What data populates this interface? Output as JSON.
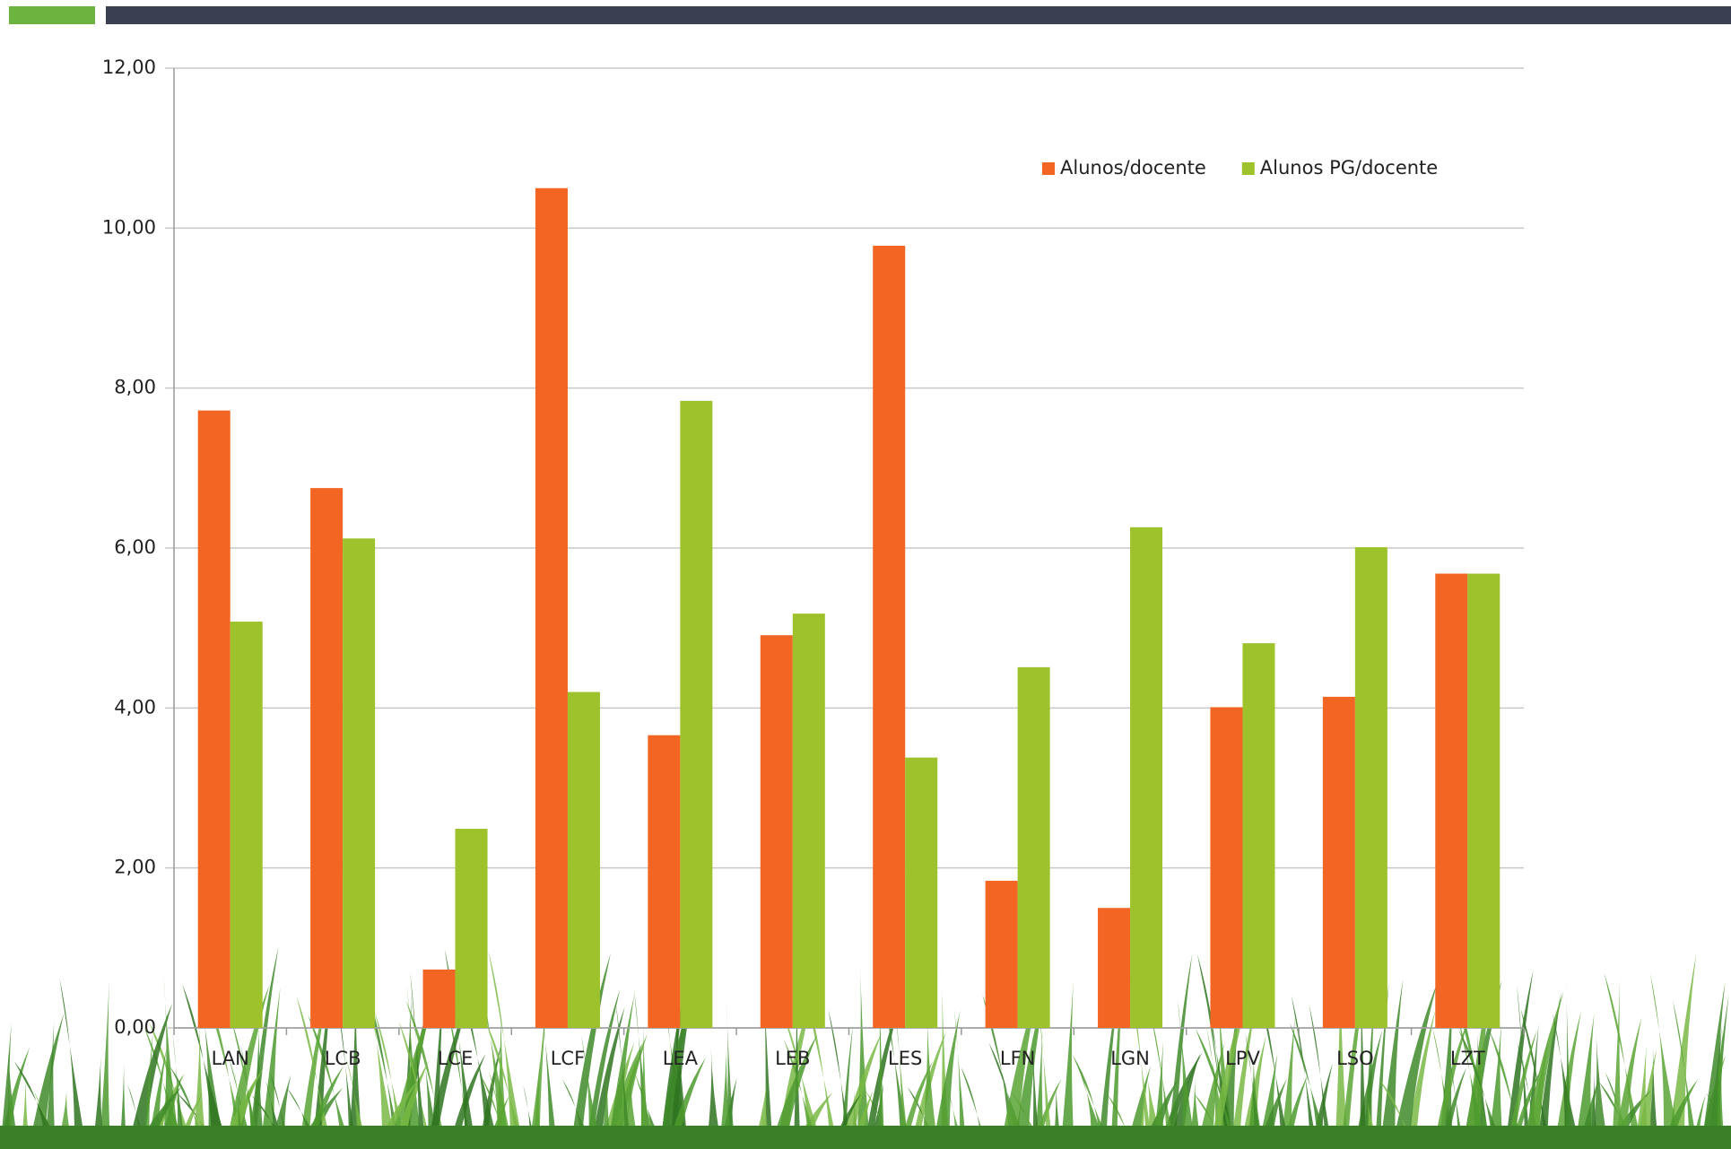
{
  "chart_data": {
    "type": "bar",
    "categories": [
      "LAN",
      "LCB",
      "LCE",
      "LCF",
      "LEA",
      "LEB",
      "LES",
      "LFN",
      "LGN",
      "LPV",
      "LSO",
      "LZT"
    ],
    "series": [
      {
        "name": "Alunos/docente",
        "color": "#f26522",
        "values": [
          7.72,
          6.75,
          0.73,
          10.5,
          3.66,
          4.91,
          9.78,
          1.84,
          1.5,
          4.01,
          4.14,
          5.68
        ]
      },
      {
        "name": "Alunos PG/docente",
        "color": "#9dc22c",
        "values": [
          5.08,
          6.12,
          2.49,
          4.2,
          7.84,
          5.18,
          3.38,
          4.51,
          6.26,
          4.81,
          6.01,
          5.68
        ]
      }
    ],
    "ylim": [
      0,
      12
    ],
    "yticks": [
      {
        "value": 0,
        "label": "0,00"
      },
      {
        "value": 2,
        "label": "2,00"
      },
      {
        "value": 4,
        "label": "4,00"
      },
      {
        "value": 6,
        "label": "6,00"
      },
      {
        "value": 8,
        "label": "8,00"
      },
      {
        "value": 10,
        "label": "10,00"
      },
      {
        "value": 12,
        "label": "12,00"
      }
    ],
    "grid": true,
    "legend": "top-right"
  }
}
